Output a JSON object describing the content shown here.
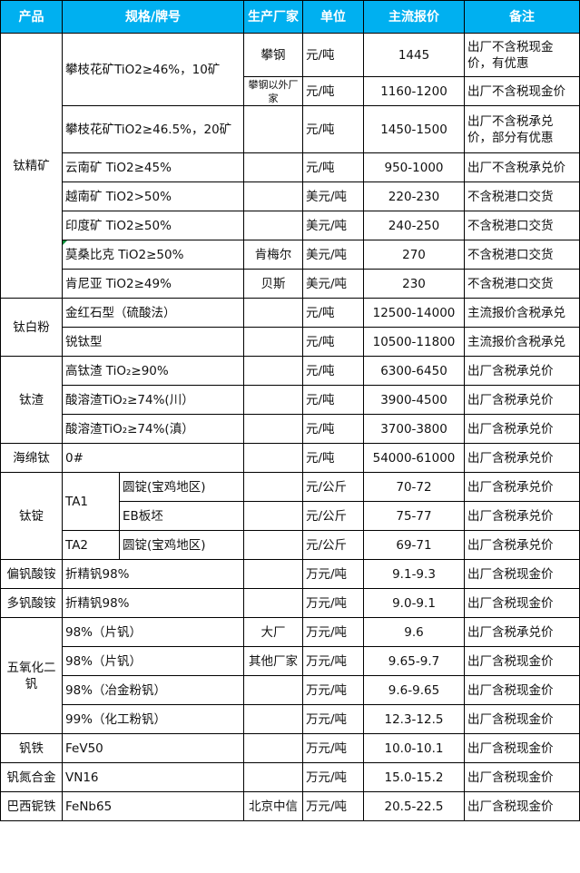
{
  "header": [
    "产品",
    "规格/牌号",
    "生产厂家",
    "单位",
    "主流报价",
    "备注"
  ],
  "header_color": "#00B0F0",
  "sections": [
    {
      "product": "钛精矿",
      "items": [
        {
          "spec": "攀枝花矿TiO2≥46%，10矿",
          "factory": "攀钢",
          "unit": "元/吨",
          "price": "1445",
          "note": "出厂不含税现金价，有优惠"
        },
        {
          "spec": "攀枝花矿TiO2≥46%，10矿",
          "factory": "攀钢以外厂家",
          "unit": "元/吨",
          "price": "1160-1200",
          "note": "出厂不含税现金价"
        },
        {
          "spec": "攀枝花矿TiO2≥46.5%，20矿",
          "factory": "",
          "unit": "元/吨",
          "price": "1450-1500",
          "note": "出厂不含税承兑价，部分有优惠"
        },
        {
          "spec": "云南矿 TiO2≥45%",
          "factory": "",
          "unit": "元/吨",
          "price": "950-1000",
          "note": "出厂不含税承兑价"
        },
        {
          "spec": "越南矿 TiO2>50%",
          "factory": "",
          "unit": "美元/吨",
          "price": "220-230",
          "note": "不含税港口交货"
        },
        {
          "spec": "印度矿 TiO2≥50%",
          "factory": "",
          "unit": "美元/吨",
          "price": "240-250",
          "note": "不含税港口交货"
        },
        {
          "spec": "莫桑比克 TiO2≥50%",
          "factory": "肯梅尔",
          "unit": "美元/吨",
          "price": "270",
          "note": "不含税港口交货"
        },
        {
          "spec": "肯尼亚 TiO2≥49%",
          "factory": "贝斯",
          "unit": "美元/吨",
          "price": "230",
          "note": "不含税港口交货"
        }
      ]
    },
    {
      "product": "钛白粉",
      "items": [
        {
          "spec": "金红石型（硫酸法）",
          "factory": "",
          "unit": "元/吨",
          "price": "12500-14000",
          "note": "主流报价含税承兑"
        },
        {
          "spec": "锐钛型",
          "factory": "",
          "unit": "元/吨",
          "price": "10500-11800",
          "note": "主流报价含税承兑"
        }
      ]
    },
    {
      "product": "钛渣",
      "items": [
        {
          "spec": "高钛渣 TiO₂≥90%",
          "factory": "",
          "unit": "元/吨",
          "price": "6300-6450",
          "note": "出厂含税承兑价"
        },
        {
          "spec": "酸溶渣TiO₂≥74%(川）",
          "factory": "",
          "unit": "元/吨",
          "price": "3900-4500",
          "note": "出厂含税承兑价"
        },
        {
          "spec": "酸溶渣TiO₂≥74%(滇）",
          "factory": "",
          "unit": "元/吨",
          "price": "3700-3800",
          "note": "出厂含税承兑价"
        }
      ]
    },
    {
      "product": "海绵钛",
      "items": [
        {
          "spec": "0#",
          "factory": "",
          "unit": "元/吨",
          "price": "54000-61000",
          "note": "出厂含税承兑价"
        }
      ]
    },
    {
      "product": "钛锭",
      "items": [
        {
          "spec": "TA1",
          "sub": "圆锭(宝鸡地区)",
          "factory": "",
          "unit": "元/公斤",
          "price": "70-72",
          "note": "出厂含税承兑价"
        },
        {
          "spec": "TA1",
          "sub": "EB板坯",
          "factory": "",
          "unit": "元/公斤",
          "price": "75-77",
          "note": "出厂含税承兑价"
        },
        {
          "spec": "TA2",
          "sub": "圆锭(宝鸡地区)",
          "factory": "",
          "unit": "元/公斤",
          "price": "69-71",
          "note": "出厂含税承兑价"
        }
      ]
    },
    {
      "product": "偏钒酸铵",
      "items": [
        {
          "spec": "折精钒98%",
          "factory": "",
          "unit": "万元/吨",
          "price": "9.1-9.3",
          "note": "出厂含税现金价"
        }
      ]
    },
    {
      "product": "多钒酸铵",
      "items": [
        {
          "spec": "折精钒98%",
          "factory": "",
          "unit": "万元/吨",
          "price": "9.0-9.1",
          "note": "出厂含税现金价"
        }
      ]
    },
    {
      "product": "五氧化二钒",
      "items": [
        {
          "spec": "98%（片钒）",
          "factory": "大厂",
          "unit": "万元/吨",
          "price": "9.6",
          "note": "出厂含税承兑价"
        },
        {
          "spec": "98%（片钒） ",
          "factory": "其他厂家",
          "unit": "万元/吨",
          "price": "9.65-9.7",
          "note": "出厂含税现金价"
        },
        {
          "spec": "98%（冶金粉钒）",
          "factory": "",
          "unit": "万元/吨",
          "price": "9.6-9.65",
          "note": "出厂含税现金价"
        },
        {
          "spec": "99%（化工粉钒）",
          "factory": "",
          "unit": "万元/吨",
          "price": "12.3-12.5",
          "note": "出厂含税现金价"
        }
      ]
    },
    {
      "product": "钒铁",
      "items": [
        {
          "spec": "FeV50",
          "factory": "",
          "unit": "万元/吨",
          "price": "10.0-10.1",
          "note": "出厂含税现金价"
        }
      ]
    },
    {
      "product": "钒氮合金",
      "items": [
        {
          "spec": "VN16",
          "factory": "",
          "unit": "万元/吨",
          "price": "15.0-15.2",
          "note": "出厂含税现金价"
        }
      ]
    },
    {
      "product": "巴西铌铁",
      "items": [
        {
          "spec": "FeNb65",
          "factory": "北京中信",
          "unit": "万元/吨",
          "price": "20.5-22.5",
          "note": "出厂含税现金价"
        }
      ]
    }
  ]
}
